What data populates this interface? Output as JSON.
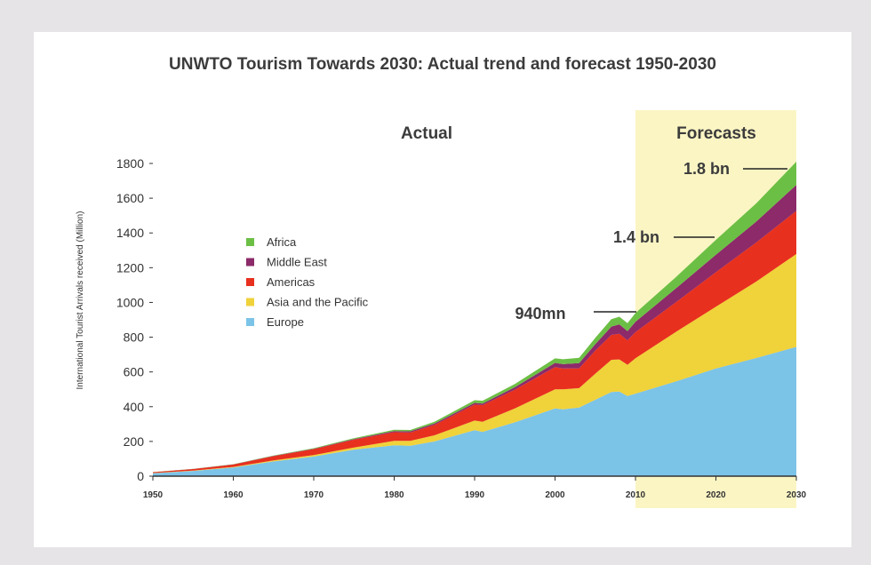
{
  "chart_data": {
    "type": "area",
    "stacked": true,
    "title": "UNWTO Tourism Towards 2030: Actual trend and forecast 1950-2030",
    "section_labels": {
      "actual": "Actual",
      "forecast": "Forecasts"
    },
    "ylabel": "International Tourist Arrivals received (Million)",
    "xlabel": "",
    "x_ticks": [
      "1950",
      "1960",
      "1970",
      "1980",
      "1990",
      "2000",
      "2010",
      "2020",
      "2030"
    ],
    "y_ticks": [
      "0",
      "200",
      "400",
      "600",
      "800",
      "1000",
      "1200",
      "1400",
      "1600",
      "1800"
    ],
    "xlim": [
      1950,
      2030
    ],
    "ylim": [
      0,
      1800
    ],
    "forecast_start": 2010,
    "legend_position": "left, middle of plot",
    "years": [
      1950,
      1955,
      1960,
      1965,
      1970,
      1975,
      1980,
      1982,
      1985,
      1990,
      1991,
      1995,
      2000,
      2001,
      2003,
      2005,
      2007,
      2008,
      2009,
      2010,
      2015,
      2020,
      2025,
      2030
    ],
    "series": [
      {
        "name": "Europe",
        "color": "#7cc3e8",
        "values": [
          17,
          30,
          50,
          85,
          113,
          153,
          178,
          175,
          200,
          265,
          255,
          310,
          390,
          385,
          395,
          440,
          485,
          487,
          461,
          475,
          545,
          620,
          680,
          744
        ]
      },
      {
        "name": "Asia and the Pacific",
        "color": "#f0d23a",
        "values": [
          1,
          2,
          3,
          6,
          8,
          12,
          25,
          28,
          35,
          55,
          58,
          80,
          110,
          115,
          112,
          150,
          185,
          185,
          180,
          204,
          285,
          355,
          440,
          535
        ]
      },
      {
        "name": "Americas",
        "color": "#e8301f",
        "values": [
          5,
          9,
          14,
          24,
          35,
          45,
          50,
          48,
          60,
          92,
          96,
          108,
          128,
          120,
          114,
          133,
          143,
          147,
          141,
          150,
          170,
          199,
          225,
          248
        ]
      },
      {
        "name": "Middle East",
        "color": "#8c2a6a",
        "values": [
          0.2,
          0.5,
          1,
          2,
          2,
          4,
          7,
          7,
          8,
          10,
          9,
          14,
          24,
          25,
          30,
          37,
          48,
          55,
          53,
          60,
          80,
          101,
          120,
          149
        ]
      },
      {
        "name": "Africa",
        "color": "#6cbf45",
        "values": [
          0.5,
          1,
          1,
          2,
          3,
          5,
          7,
          8,
          10,
          15,
          16,
          19,
          26,
          28,
          30,
          36,
          43,
          44,
          46,
          50,
          65,
          85,
          105,
          134
        ]
      }
    ],
    "annotations": [
      {
        "label": "940mn",
        "year": 2010,
        "value": 940
      },
      {
        "label": "1.4 bn",
        "year": 2020,
        "value": 1360
      },
      {
        "label": "1.8 bn",
        "year": 2030,
        "value": 1810
      }
    ],
    "colors": {
      "forecast_band": "#fbf5c4",
      "axis": "#333333",
      "background": "#ffffff",
      "frame": "#e6e4e6"
    }
  }
}
